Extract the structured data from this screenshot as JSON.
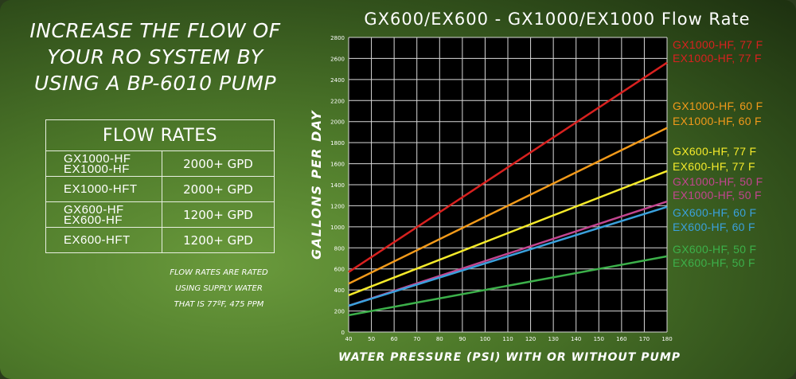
{
  "headline": {
    "lines": [
      "INCREASE THE FLOW OF",
      "YOUR RO SYSTEM BY",
      "USING A BP-6010 PUMP"
    ]
  },
  "flow_table": {
    "header": "FLOW RATES",
    "rows": [
      {
        "models": [
          "GX1000-HF",
          "EX1000-HF"
        ],
        "rate": "2000+ GPD"
      },
      {
        "models": [
          "EX1000-HFT"
        ],
        "rate": "2000+ GPD"
      },
      {
        "models": [
          "GX600-HF",
          "EX600-HF"
        ],
        "rate": "1200+ GPD"
      },
      {
        "models": [
          "EX600-HFT"
        ],
        "rate": "1200+ GPD"
      }
    ]
  },
  "note": {
    "lines": [
      "FLOW RATES ARE RATED",
      "USING SUPPLY WATER",
      "THAT IS 77ºF, 475 PPM"
    ]
  },
  "chart_data": {
    "type": "line",
    "title": "GX600/EX600 - GX1000/EX1000 Flow Rate",
    "xlabel": "WATER PRESSURE (PSI) WITH OR WITHOUT PUMP",
    "ylabel": "GALLONS PER DAY",
    "xlim": [
      40,
      180
    ],
    "ylim": [
      0,
      2800
    ],
    "xticks": [
      "40",
      "50",
      "60",
      "70",
      "80",
      "90",
      "100",
      "110",
      "120",
      "130",
      "140",
      "150",
      "160",
      "170",
      "180"
    ],
    "yticks": [
      "0",
      "200",
      "400",
      "600",
      "800",
      "1000",
      "1200",
      "1400",
      "1600",
      "1800",
      "2000",
      "2200",
      "2400",
      "2600",
      "2800"
    ],
    "grid": true,
    "legend_position": "right",
    "series": [
      {
        "name": [
          "GX1000-HF, 77  F",
          "EX1000-HF, 77  F"
        ],
        "color": "#d8211f",
        "x": [
          40,
          180
        ],
        "y": [
          570,
          2560
        ]
      },
      {
        "name": [
          "GX1000-HF, 60  F",
          "EX1000-HF, 60  F"
        ],
        "color": "#f29a1a",
        "x": [
          40,
          180
        ],
        "y": [
          460,
          1940
        ]
      },
      {
        "name": [
          "GX600-HF, 77  F",
          "EX600-HF, 77  F"
        ],
        "color": "#f5ea2a",
        "x": [
          40,
          180
        ],
        "y": [
          350,
          1530
        ]
      },
      {
        "name": [
          "GX1000-HF, 50  F",
          "EX1000-HF, 50  F"
        ],
        "color": "#c2458f",
        "x": [
          40,
          180
        ],
        "y": [
          250,
          1240
        ]
      },
      {
        "name": [
          "GX600-HF, 60  F",
          "EX600-HF, 60  F"
        ],
        "color": "#3aa0dc",
        "x": [
          40,
          180
        ],
        "y": [
          250,
          1190
        ]
      },
      {
        "name": [
          "GX600-HF, 50  F",
          "EX600-HF, 50  F"
        ],
        "color": "#3cb04a",
        "x": [
          40,
          180
        ],
        "y": [
          160,
          720
        ]
      }
    ]
  }
}
